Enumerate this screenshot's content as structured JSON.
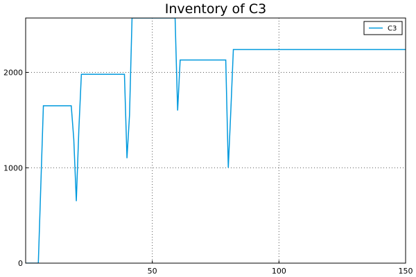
{
  "chart_data": {
    "type": "line",
    "title": "Inventory of C3",
    "xlabel": "",
    "ylabel": "",
    "xlim": [
      0,
      150
    ],
    "ylim": [
      0,
      2570
    ],
    "xticks": [
      50,
      100,
      150
    ],
    "yticks": [
      0,
      1000,
      2000
    ],
    "grid": true,
    "legend": "top-right",
    "series": [
      {
        "name": "C3",
        "color": "#0099dd",
        "x": [
          0,
          5,
          7,
          18,
          19,
          20,
          21,
          22,
          38,
          39,
          40,
          41,
          42,
          58,
          59,
          60,
          61,
          62,
          78,
          79,
          80,
          81,
          82,
          150
        ],
        "y": [
          0,
          0,
          1650,
          1650,
          1300,
          650,
          1400,
          1980,
          1980,
          1980,
          1100,
          1550,
          2570,
          2570,
          2570,
          1600,
          2130,
          2130,
          2130,
          2130,
          1000,
          1600,
          2240,
          2240
        ]
      }
    ]
  }
}
